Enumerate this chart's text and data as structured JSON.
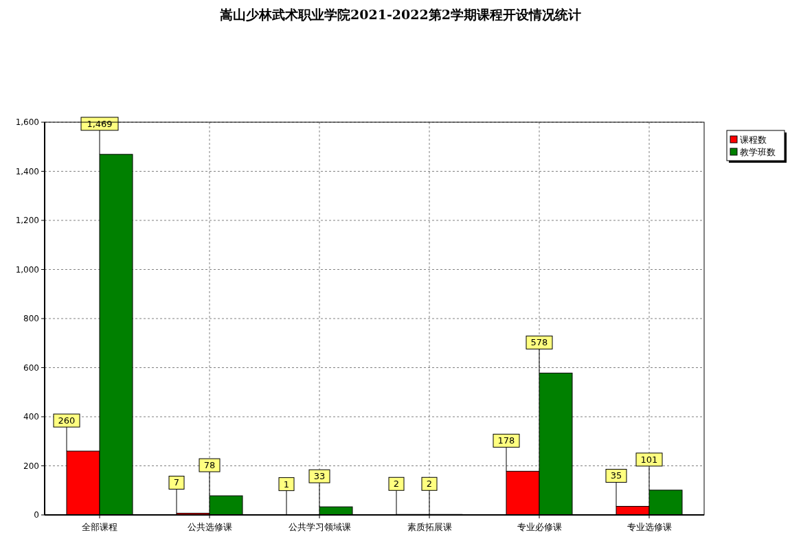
{
  "chart_data": {
    "type": "bar",
    "title": "嵩山少林武术职业学院2021-2022第2学期课程开设情况统计",
    "categories": [
      "全部课程",
      "公共选修课",
      "公共学习领域课",
      "素质拓展课",
      "专业必修课",
      "专业选修课"
    ],
    "series": [
      {
        "name": "课程数",
        "color": "#ff0000",
        "values": [
          260,
          7,
          1,
          2,
          178,
          35
        ],
        "value_labels": [
          "260",
          "7",
          "1",
          "2",
          "178",
          "35"
        ]
      },
      {
        "name": "教学班数",
        "color": "#008000",
        "values": [
          1469,
          78,
          33,
          2,
          578,
          101
        ],
        "value_labels": [
          "1,469",
          "78",
          "33",
          "2",
          "578",
          "101"
        ]
      }
    ],
    "ylim": [
      0,
      1600
    ],
    "yticks": [
      0,
      200,
      400,
      600,
      800,
      {
        "value": 1000,
        "label": "1,000"
      },
      {
        "value": 1200,
        "label": "1,200"
      },
      {
        "value": 1400,
        "label": "1,400"
      },
      {
        "value": 1600,
        "label": "1,600"
      }
    ],
    "grid": true,
    "legend": "top right"
  }
}
